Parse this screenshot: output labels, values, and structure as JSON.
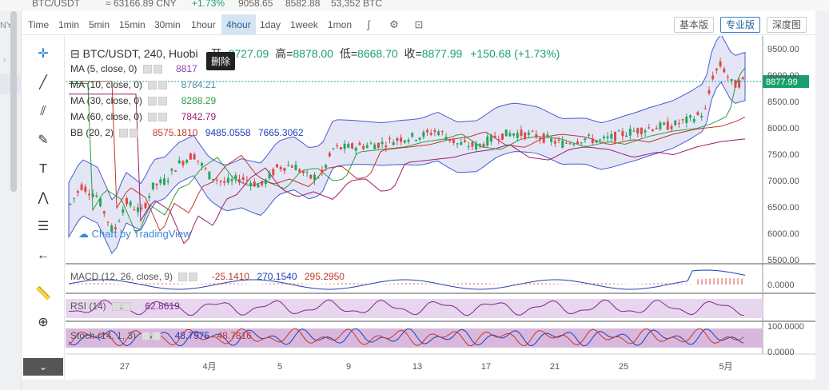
{
  "top_info": {
    "pair": "BTC/USDT",
    "cny_price": "≈ 63166.89 CNY",
    "change": "+1.73%",
    "high": "9058.65",
    "low": "8582.88",
    "volume": "53,352 BTC"
  },
  "left_panel_text": "NY",
  "toolbar": {
    "time_label": "Time",
    "intervals": [
      "1min",
      "5min",
      "15min",
      "30min",
      "1hour",
      "4hour",
      "1day",
      "1week",
      "1mon"
    ],
    "active_interval": "4hour",
    "views": [
      "基本版",
      "专业版",
      "深度图"
    ],
    "active_view": "专业版"
  },
  "header": {
    "symbol": "BTC/USDT, 240, Huobi",
    "open_label": "开=",
    "open": "8727.09",
    "high_label": "高=",
    "high": "8878.00",
    "low_label": "低=",
    "low": "8668.70",
    "close_label": "收=",
    "close": "8877.99",
    "change": "+150.68 (+1.73%)"
  },
  "tooltip": "删除",
  "indicators": [
    {
      "label": "MA (5, close, 0)",
      "values": [
        "8817"
      ],
      "colors": [
        "#8e44ad"
      ]
    },
    {
      "label": "MA (10, close, 0)",
      "values": [
        "8784.21"
      ],
      "colors": [
        "#4a8fa8"
      ]
    },
    {
      "label": "MA (30, close, 0)",
      "values": [
        "8288.29"
      ],
      "colors": [
        "#2e9e3e"
      ]
    },
    {
      "label": "MA (60, close, 0)",
      "values": [
        "7842.79"
      ],
      "colors": [
        "#9c1f6e"
      ]
    },
    {
      "label": "BB (20, 2)",
      "values": [
        "8575.1810",
        "9485.0558",
        "7665.3062"
      ],
      "colors": [
        "#c0392b",
        "#1f3fb3",
        "#1f3fb3"
      ]
    }
  ],
  "watermark": "Chart by TradingView",
  "price_axis": [
    "9500.00",
    "9000.00",
    "8500.00",
    "8000.00",
    "7500.00",
    "7000.00",
    "6500.00",
    "6000.00",
    "5500.00"
  ],
  "current_price": "8877.99",
  "macd": {
    "label": "MACD (12, 26, close, 9)",
    "values": [
      "-25.1410",
      "270.1540",
      "295.2950"
    ],
    "axis": "0.0000"
  },
  "rsi": {
    "label": "RSI (14)",
    "value": "62.8619"
  },
  "stoch": {
    "label": "Stoch (14, 1, 3)",
    "values": [
      "48.7975",
      "48.7816"
    ],
    "axis_top": "100.0000",
    "axis_bottom": "0.0000"
  },
  "time_axis": [
    "27",
    "4月",
    "5",
    "9",
    "13",
    "17",
    "21",
    "25",
    "5月"
  ],
  "colors": {
    "up": "#26a65b",
    "down": "#e0484a",
    "accent": "#1aa06d",
    "bb_fill": "#d9dcf2"
  }
}
